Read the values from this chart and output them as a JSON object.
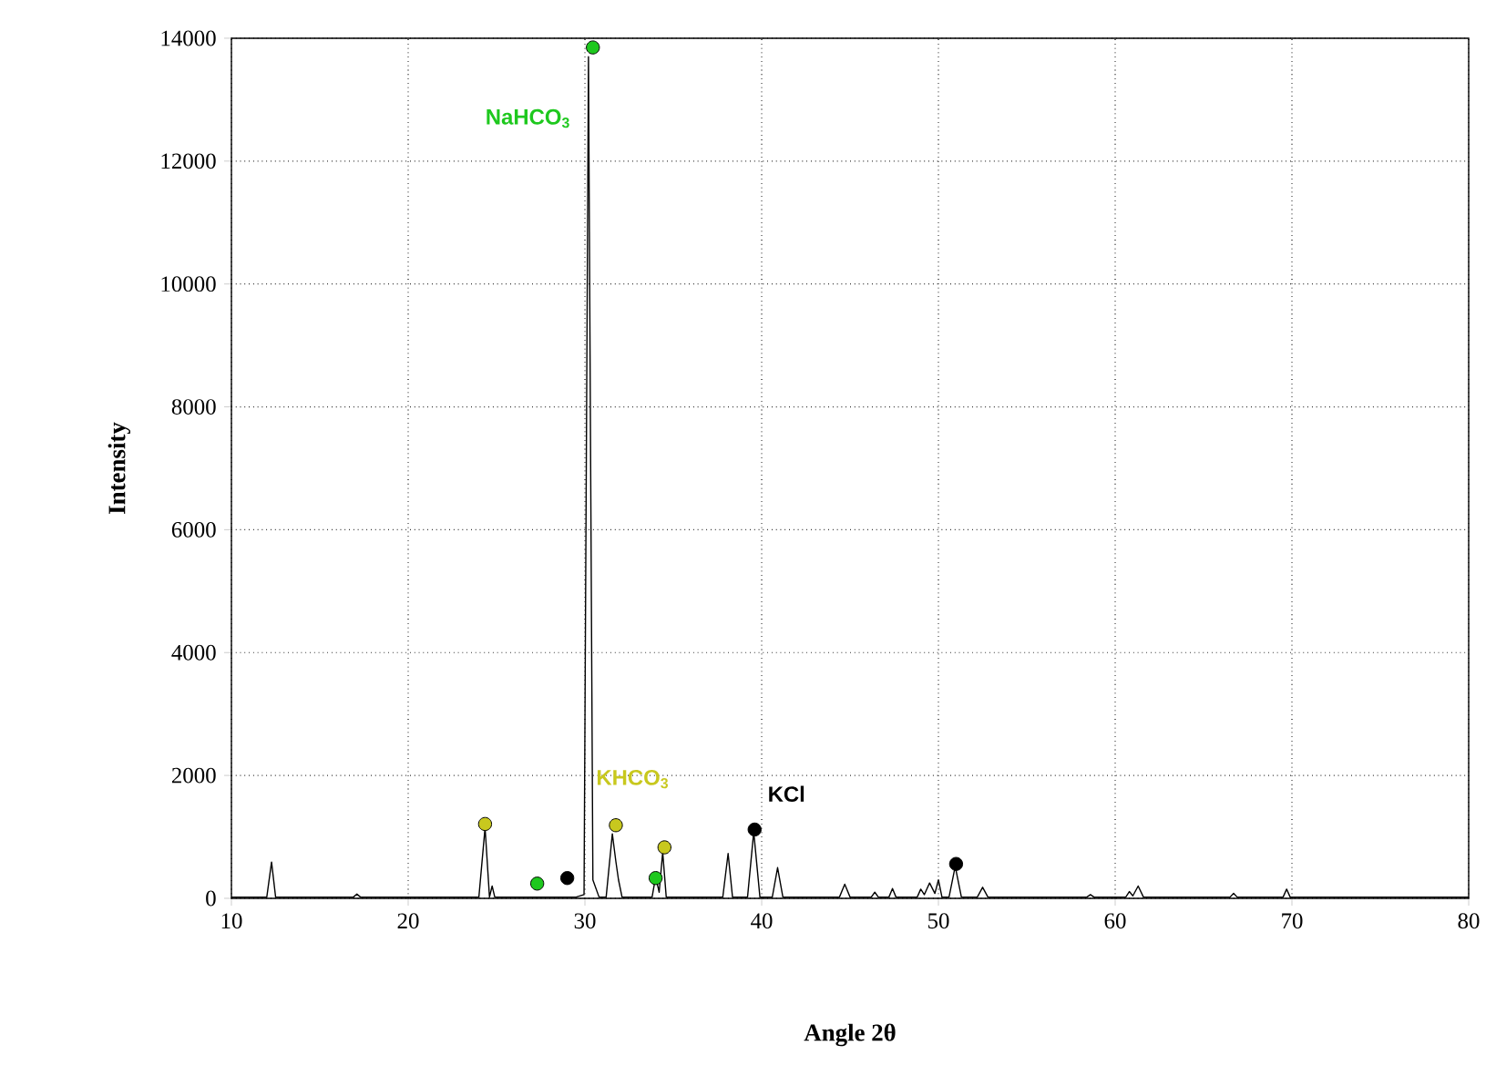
{
  "chart_data": {
    "type": "line",
    "xlabel": "Angle 2θ",
    "ylabel": "Intensity",
    "xlim": [
      10,
      80
    ],
    "ylim": [
      0,
      14000
    ],
    "xticks": [
      10,
      20,
      30,
      40,
      50,
      60,
      70,
      80
    ],
    "yticks": [
      0,
      2000,
      4000,
      6000,
      8000,
      10000,
      12000,
      14000
    ],
    "grid": true,
    "series": [
      {
        "color": "#000000",
        "x": [
          10,
          12.0,
          12.27,
          12.5,
          16.9,
          17.1,
          17.3,
          24.0,
          24.35,
          24.6,
          24.75,
          24.9,
          27,
          29.5,
          29.95,
          30.2,
          30.45,
          30.8,
          31.2,
          31.55,
          31.75,
          31.9,
          32.1,
          32.4,
          33.8,
          34.0,
          34.2,
          34.4,
          34.6,
          37.8,
          38.1,
          38.35,
          39.2,
          39.55,
          39.9,
          40.6,
          40.9,
          41.2,
          44.4,
          44.7,
          45.0,
          46.2,
          46.4,
          46.6,
          47.2,
          47.4,
          47.6,
          48.8,
          49.0,
          49.2,
          49.5,
          49.8,
          50.0,
          50.2,
          50.6,
          50.95,
          51.3,
          52.2,
          52.5,
          52.8,
          58.4,
          58.6,
          58.8,
          60.6,
          60.8,
          61.0,
          61.3,
          61.6,
          66.5,
          66.7,
          66.9,
          69.5,
          69.7,
          69.9,
          80
        ],
        "values": [
          20,
          20,
          590,
          20,
          20,
          70,
          20,
          20,
          1150,
          20,
          200,
          20,
          20,
          20,
          60,
          13700,
          300,
          20,
          20,
          1050,
          600,
          300,
          20,
          20,
          20,
          350,
          100,
          750,
          20,
          20,
          730,
          20,
          20,
          1080,
          20,
          20,
          500,
          20,
          20,
          230,
          20,
          20,
          100,
          20,
          20,
          160,
          20,
          20,
          150,
          60,
          250,
          80,
          300,
          20,
          20,
          520,
          20,
          20,
          180,
          20,
          20,
          60,
          20,
          20,
          110,
          40,
          200,
          20,
          20,
          80,
          20,
          20,
          150,
          20,
          20
        ]
      },
      {
        "type": "scatter",
        "name": "NaHCO$_{3}$",
        "marker": "circle",
        "color": "#1ec81e",
        "x": [
          27.3,
          30.45,
          34.0
        ],
        "values": [
          240,
          13850,
          330
        ]
      },
      {
        "type": "scatter",
        "name": "KHCO$_{3}$",
        "marker": "circle",
        "color": "#c8c81e",
        "x": [
          24.35,
          31.75,
          34.5
        ],
        "values": [
          1210,
          1190,
          830
        ]
      },
      {
        "type": "scatter",
        "name": "KCl",
        "marker": "circle",
        "color": "#000000",
        "x": [
          29.0,
          39.6,
          51.0
        ],
        "values": [
          330,
          1120,
          560
        ]
      }
    ]
  }
}
